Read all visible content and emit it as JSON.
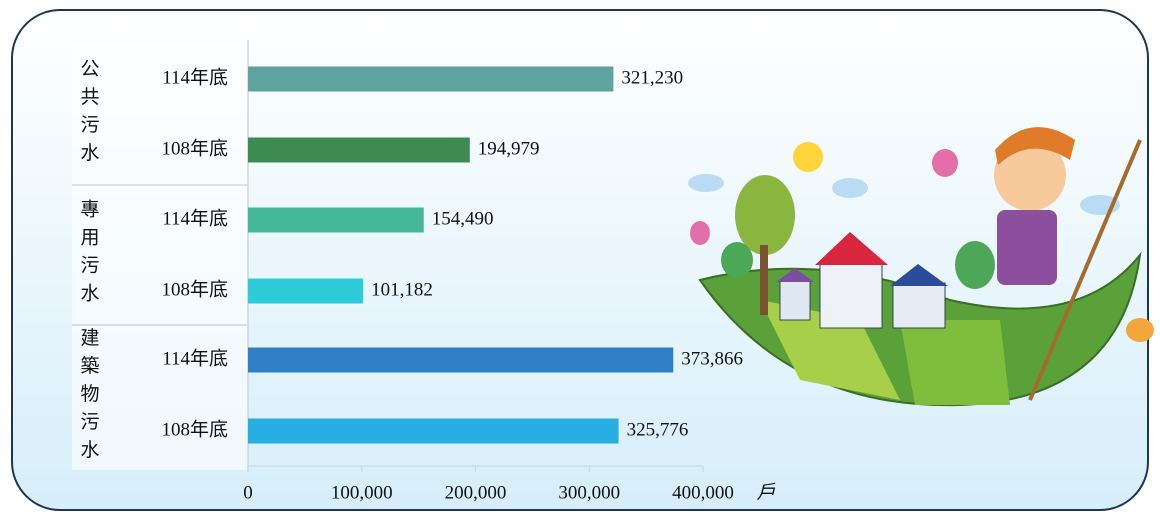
{
  "chart_data": {
    "type": "bar",
    "orientation": "horizontal",
    "groups": [
      {
        "name": "公共污水",
        "categories": [
          "114年底",
          "108年底"
        ],
        "values": [
          321230,
          194979
        ],
        "value_labels": [
          "321,230",
          "194,979"
        ],
        "colors": [
          "#5fa39f",
          "#3d8a52"
        ]
      },
      {
        "name": "專用污水",
        "categories": [
          "114年底",
          "108年底"
        ],
        "values": [
          154490,
          101182
        ],
        "value_labels": [
          "154,490",
          "101,182"
        ],
        "colors": [
          "#45b899",
          "#2ccdd8"
        ]
      },
      {
        "name": "建築物污水",
        "categories": [
          "114年底",
          "108年底"
        ],
        "values": [
          373866,
          325776
        ],
        "value_labels": [
          "373,866",
          "325,776"
        ],
        "colors": [
          "#2f7fc6",
          "#27aee3"
        ]
      }
    ],
    "xlim": [
      0,
      400000
    ],
    "xticks": [
      0,
      {
        "value": 100000,
        "label": "100,000"
      },
      {
        "value": 200000,
        "label": "200,000"
      },
      {
        "value": 300000,
        "label": "300,000"
      },
      {
        "value": 400000,
        "label": "400,000"
      }
    ],
    "x_unit": "戶"
  }
}
